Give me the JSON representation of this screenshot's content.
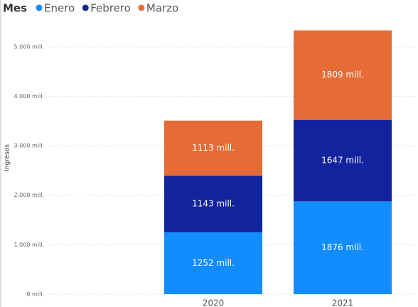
{
  "chart_data": {
    "type": "stacked_bar",
    "legend_title": "Mes",
    "y_label": "Ingresos",
    "categories": [
      "2020",
      "2021"
    ],
    "series": [
      {
        "name": "Enero",
        "color": "#118dff",
        "values": [
          1252,
          1876
        ],
        "value_labels": [
          "1252 mill.",
          "1876 mill."
        ]
      },
      {
        "name": "Febrero",
        "color": "#12239e",
        "values": [
          1143,
          1647
        ],
        "value_labels": [
          "1143 mill.",
          "1647 mill."
        ]
      },
      {
        "name": "Marzo",
        "color": "#e66c37",
        "values": [
          1113,
          1809
        ],
        "value_labels": [
          "1113 mill.",
          "1809 mill."
        ]
      }
    ],
    "ylim": [
      0,
      5500
    ],
    "yticks": [
      {
        "value": 0,
        "label": "0 mill."
      },
      {
        "value": 1000,
        "label": "1.000 mill."
      },
      {
        "value": 2000,
        "label": "2.000 mill."
      },
      {
        "value": 3000,
        "label": "3.000 mill."
      },
      {
        "value": 4000,
        "label": "4.000 mill."
      },
      {
        "value": 5000,
        "label": "5.000 mill."
      }
    ],
    "grid": true
  }
}
